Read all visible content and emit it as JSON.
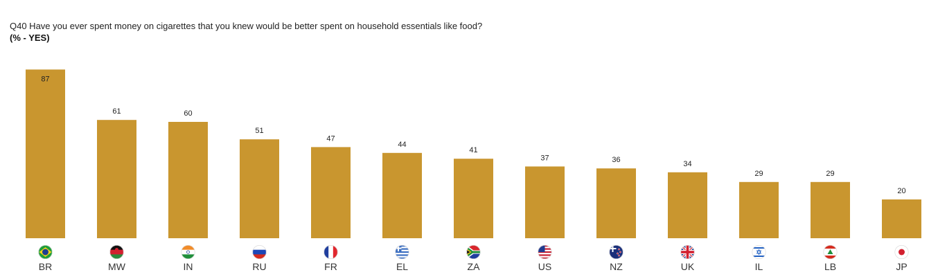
{
  "header": {
    "question": "Q40 Have you ever spent money on cigarettes that you knew would be better spent on household essentials like food?",
    "subtitle": "(% - YES)"
  },
  "chart_data": {
    "type": "bar",
    "title": "Q40 Have you ever spent money on cigarettes that you knew would be better spent on household essentials like food?",
    "subtitle": "(% - YES)",
    "xlabel": "",
    "ylabel": "",
    "ylim": [
      0,
      90
    ],
    "grid": false,
    "bar_color": "#C9962F",
    "categories": [
      "BR",
      "MW",
      "IN",
      "RU",
      "FR",
      "EL",
      "ZA",
      "US",
      "NZ",
      "UK",
      "IL",
      "LB",
      "JP"
    ],
    "values": [
      87,
      61,
      60,
      51,
      47,
      44,
      41,
      37,
      36,
      34,
      29,
      29,
      20
    ],
    "flags": [
      {
        "code": "BR",
        "icon": "brazil-flag-icon",
        "colors": [
          "#1f9e3a",
          "#f2d21b",
          "#1d3f8f"
        ]
      },
      {
        "code": "MW",
        "icon": "malawi-flag-icon",
        "colors": [
          "#111111",
          "#d2202f",
          "#2b8a3e"
        ]
      },
      {
        "code": "IN",
        "icon": "india-flag-icon",
        "colors": [
          "#f28c28",
          "#ffffff",
          "#1f8f3a"
        ]
      },
      {
        "code": "RU",
        "icon": "russia-flag-icon",
        "colors": [
          "#ffffff",
          "#1c47b8",
          "#d52b1e"
        ]
      },
      {
        "code": "FR",
        "icon": "france-flag-icon",
        "colors": [
          "#1f3e9e",
          "#ffffff",
          "#e1262d"
        ]
      },
      {
        "code": "EL",
        "icon": "greece-flag-icon",
        "colors": [
          "#3c6fc2",
          "#ffffff"
        ]
      },
      {
        "code": "ZA",
        "icon": "south-africa-flag-icon",
        "colors": [
          "#1f8f3a",
          "#d8262b",
          "#1f3e9e",
          "#f5c518",
          "#111111"
        ]
      },
      {
        "code": "US",
        "icon": "usa-flag-icon",
        "colors": [
          "#c62033",
          "#ffffff",
          "#213a8f"
        ]
      },
      {
        "code": "NZ",
        "icon": "new-zealand-flag-icon",
        "colors": [
          "#1b2f7a",
          "#d2202f",
          "#ffffff"
        ]
      },
      {
        "code": "UK",
        "icon": "uk-flag-icon",
        "colors": [
          "#1b3a8f",
          "#ffffff",
          "#d2202f"
        ]
      },
      {
        "code": "IL",
        "icon": "israel-flag-icon",
        "colors": [
          "#ffffff",
          "#1f5fc2"
        ]
      },
      {
        "code": "LB",
        "icon": "lebanon-flag-icon",
        "colors": [
          "#d52b1e",
          "#ffffff",
          "#1f8f3a"
        ]
      },
      {
        "code": "JP",
        "icon": "japan-flag-icon",
        "colors": [
          "#ffffff",
          "#d2202f"
        ]
      }
    ]
  }
}
